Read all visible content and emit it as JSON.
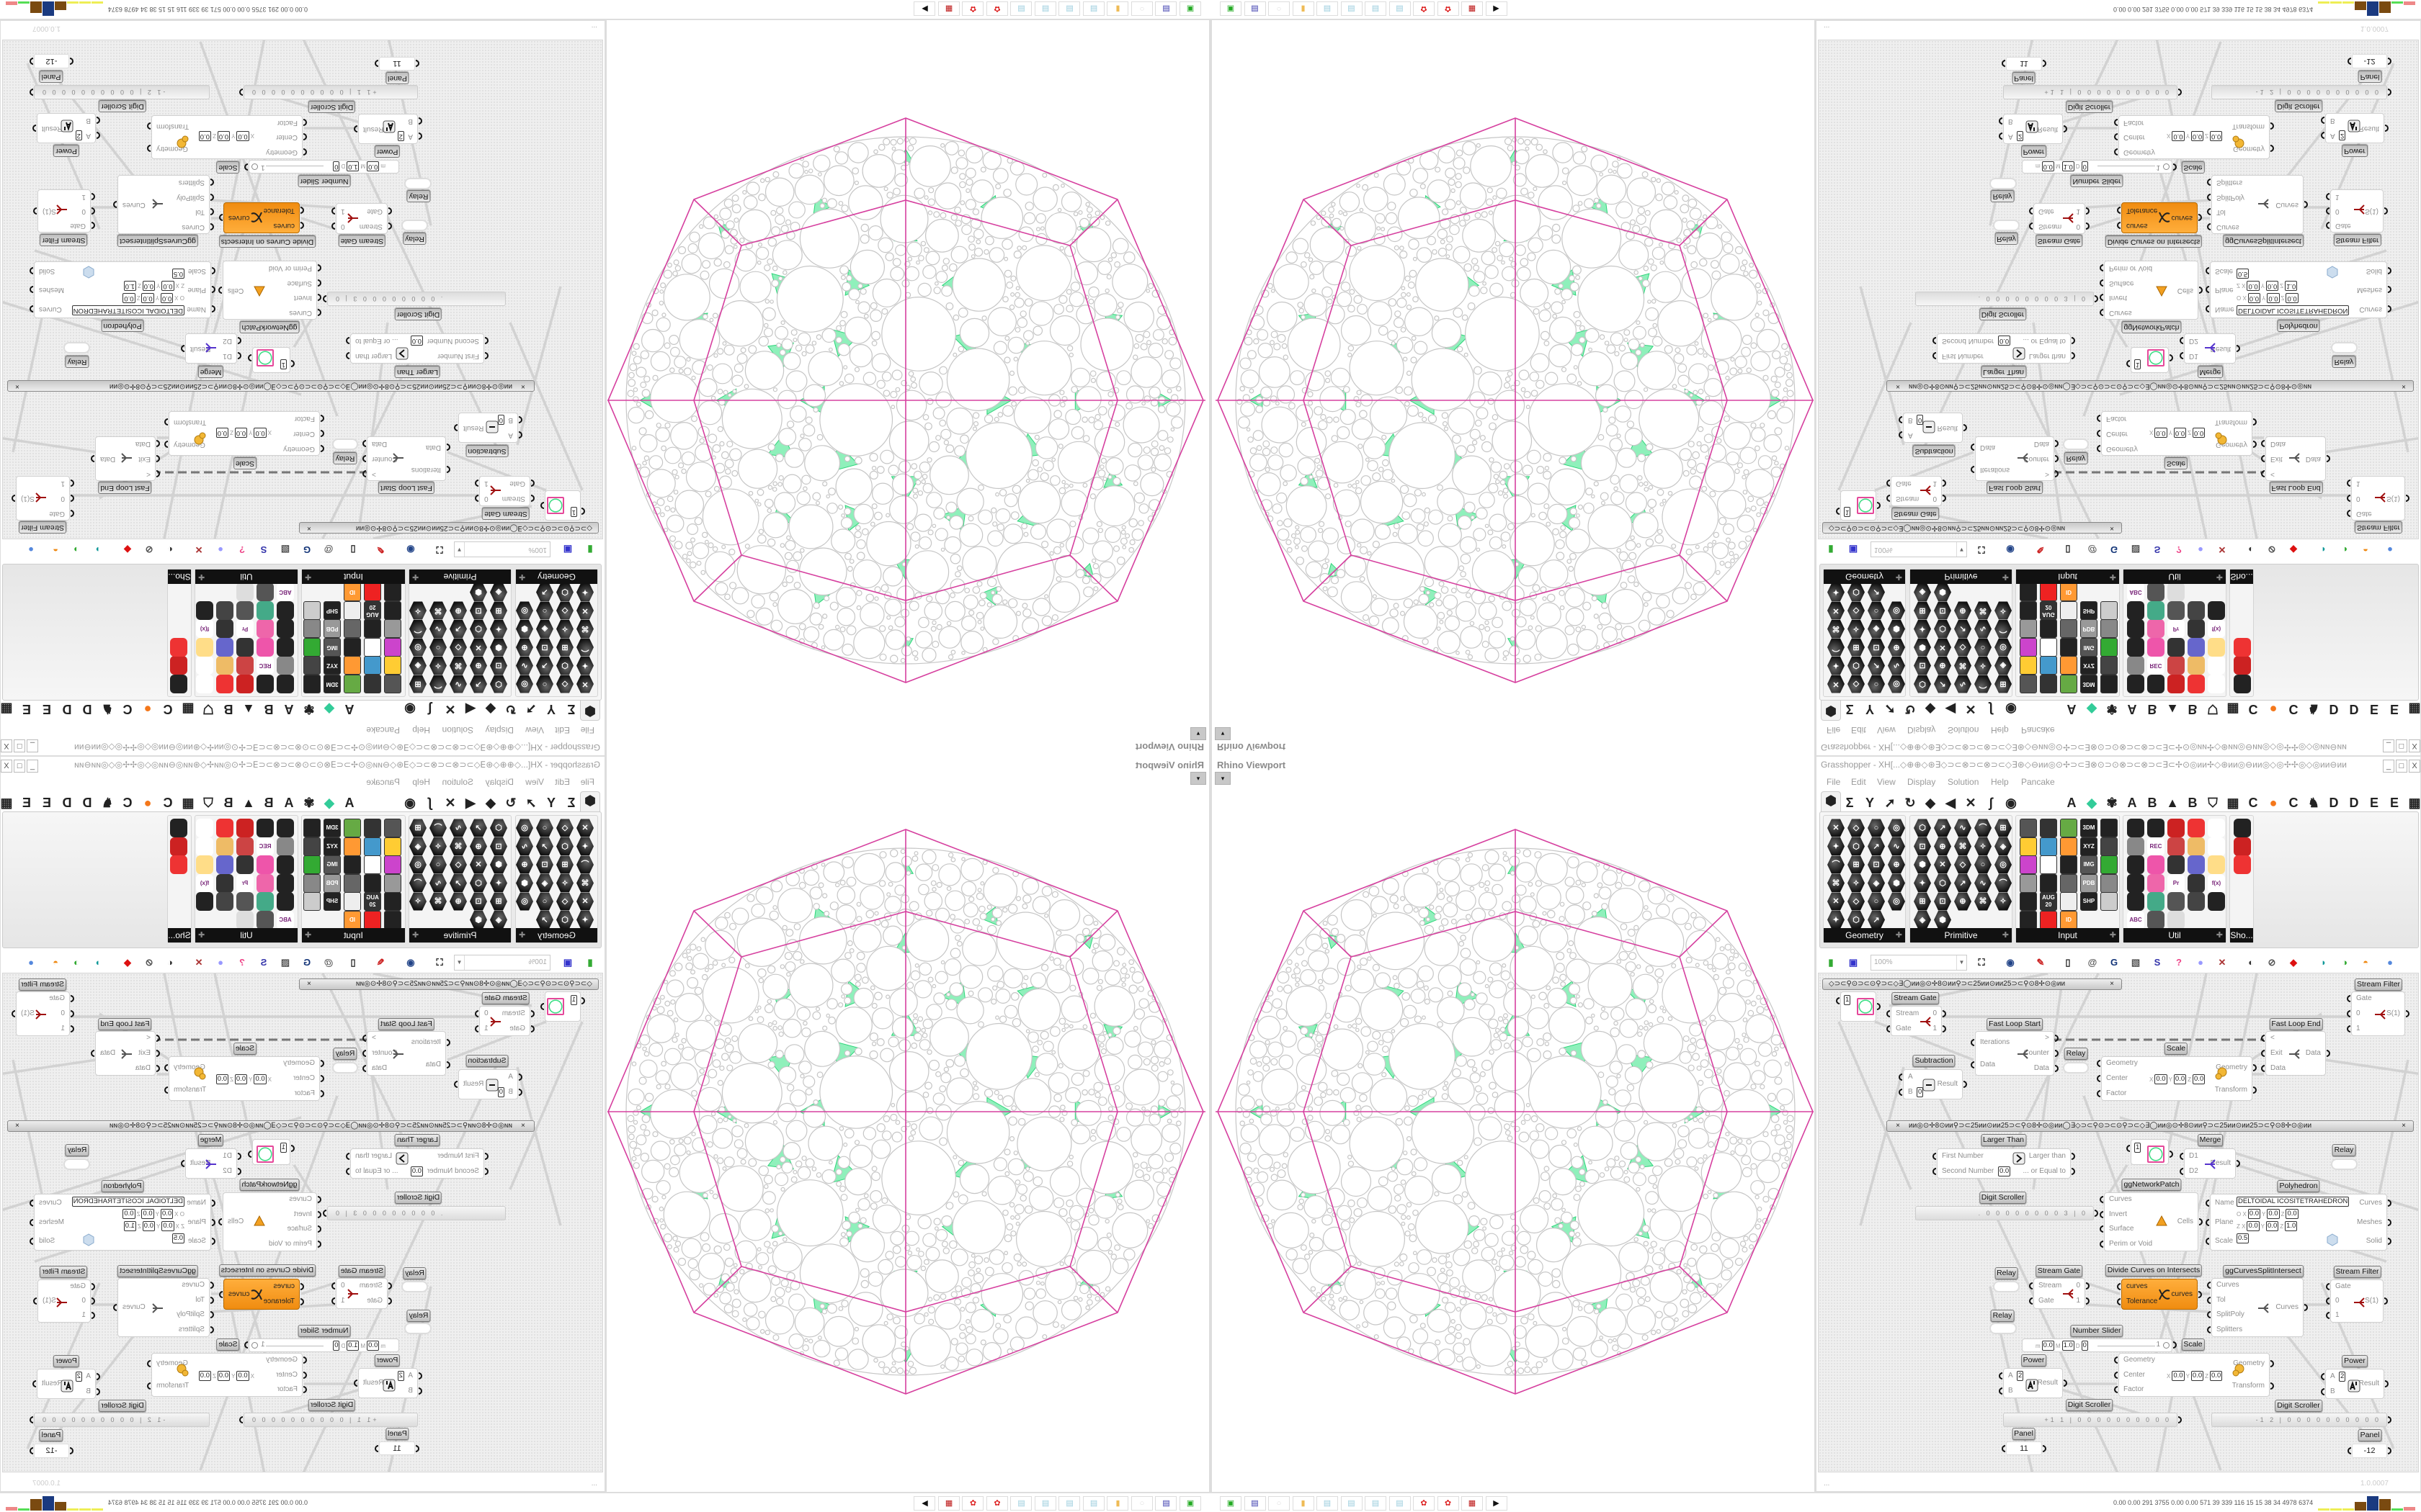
{
  "viewport": {
    "title": "Rhino Viewport",
    "dropdown": "▾"
  },
  "gh": {
    "title": "Grasshopper - XH[...◇⊕⊕◇⊛∃◇⊃⊂⊗⊃⊂⊗⊃⊂◇∃⊛◇⊖ᴎᴎ◎⊙✢⊃⊂∃⊗⊙⊃⊙⊗⊃⊂⊗⊃⊂∃⊂✢⊙◎ᴎᴎ✢◇⊛ᴎᴎ◎⊖ᴎᴎ◎◇◎✢✢◎◇◎ᴎᴎ⊖ᴎᴎ⊛◇ᴎᴎ◎⊙✢⊃⊂∃⊗⊙⊃⊙⊗⊃",
    "window_buttons": [
      "_",
      "□",
      "X"
    ],
    "menu": [
      "File",
      "Edit",
      "View",
      "Display",
      "Solution",
      "Help",
      "Pancake"
    ],
    "letter_tabs": [
      "A",
      "A",
      "B",
      "B",
      "C",
      "C",
      "D",
      "D",
      "E",
      "E"
    ],
    "panels": [
      "Geometry",
      "Primitive",
      "Input",
      "Util",
      "Sho..."
    ],
    "input_icon_labels": [
      "3DM",
      "XYZ",
      "IMG",
      "PDB",
      "SHP",
      "AUG 20",
      "ID"
    ],
    "util_icon_labels": [
      "REC",
      "f(x)",
      "Pr",
      "ABC"
    ],
    "zoom": "100%",
    "group_text": "◇⊃⊂⚲⊙⊃⊂⊙⚲⊃⊂◇∃◯ᴎᴎ◎⊙✢8⊙ᴎᴎ⚲⊃⊂25ᴎᴎ⊙ᴎᴎ25⊃⊂⚲⊙8✢⊙◎ᴎᴎ",
    "group_text_2": "ᴎᴎ◎⊙✢8⊙ᴎᴎ⚲⊃⊂25ᴎᴎ⊙ᴎᴎ25⊃⊂⚲⊙8✢⊙◎ᴎᴎ◯∃◇⊃⊂⚲⊙⊃⊂⊙⚲⊃⊂◇∃◯ᴎᴎ◎⊙✢8⊙ᴎᴎ⚲⊃⊂25ᴎᴎ⊙ᴎᴎ25⊃⊂⚲⊙8✢⊙◎ᴎᴎ",
    "group_close": "×",
    "components": [
      {
        "kind": "comp",
        "label": "Stream Filter",
        "inputs": [
          "Gate",
          "0",
          "1"
        ],
        "outputs": [
          "S(1)"
        ],
        "icon": "stream-filter-icon"
      },
      {
        "kind": "swatch",
        "value": "1"
      },
      {
        "kind": "comp",
        "label": "Stream Gate",
        "inputs": [
          "Stream",
          "Gate"
        ],
        "outputs": [
          "0",
          "1"
        ],
        "icon": "stream-gate-icon"
      },
      {
        "kind": "comp",
        "label": "Fast Loop Start",
        "inputs": [
          "Iterations",
          "Data"
        ],
        "outputs": [
          ">",
          "Counter",
          "Data"
        ],
        "icon": "loop-start-icon"
      },
      {
        "kind": "comp",
        "label": "Fast Loop End",
        "inputs": [
          "<",
          "Exit",
          "Data"
        ],
        "outputs": [
          "Data"
        ],
        "icon": "loop-end-icon"
      },
      {
        "kind": "relay",
        "label": "Relay"
      },
      {
        "kind": "comp",
        "label": "Scale",
        "inputs": [
          "Geometry",
          "Center",
          "Factor"
        ],
        "outputs": [
          "Geometry",
          "Transform"
        ],
        "field_rows": [
          [
            [
              "X",
              "0.0"
            ],
            [
              "Y",
              "0.0"
            ],
            [
              "Z",
              "0.0"
            ]
          ]
        ],
        "icon": "scale-icon"
      },
      {
        "kind": "comp",
        "label": "Subtraction",
        "inputs": [
          "A",
          "B"
        ],
        "outputs": [
          "Result"
        ],
        "field_rows": [
          [
            [
              "",
              "0"
            ]
          ]
        ],
        "icon": "minus-icon"
      },
      {
        "kind": "comp",
        "label": "Larger Than",
        "inputs": [
          "First Number",
          "Second Number"
        ],
        "outputs": [
          "Larger than",
          "... or Equal to"
        ],
        "field_rows": [
          [
            [
              "",
              "0.0"
            ]
          ]
        ],
        "icon": "greater-than-icon"
      },
      {
        "kind": "swatch",
        "value": "1"
      },
      {
        "kind": "comp",
        "label": "Merge",
        "inputs": [
          "D1",
          "D2"
        ],
        "outputs": [
          "Result"
        ],
        "icon": "merge-icon"
      },
      {
        "kind": "relay",
        "label": "Relay"
      },
      {
        "kind": "comp",
        "label": "ggNetworkPatch",
        "inputs": [
          "Curves",
          "Invert",
          "Surface",
          "Perim or Void"
        ],
        "outputs": [
          "Cells"
        ],
        "icon": "network-patch-icon"
      },
      {
        "kind": "comp",
        "label": "Polyhedron",
        "inputs": [
          "Name",
          "Plane",
          "Scale"
        ],
        "outputs": [
          "Curves",
          "Meshes",
          "Solid"
        ],
        "field_rows": [
          [
            [
              "",
              "DELTOIDAL ICOSITETRAHEDRON"
            ]
          ],
          [
            [
              "O X",
              "0.0"
            ],
            [
              "Y",
              "0.0"
            ],
            [
              "Z",
              "0.0"
            ]
          ],
          [
            [
              "Z X",
              "0.0"
            ],
            [
              "Y",
              "0.0"
            ],
            [
              "Z",
              "1.0"
            ]
          ],
          [
            [
              "",
              "0.5"
            ]
          ]
        ],
        "icon": "polyhedron-icon"
      },
      {
        "kind": "scroller",
        "label": "Digit Scroller",
        "digits": ". 0 0 0 0 0 0 0 0 3 | 0"
      },
      {
        "kind": "relay",
        "label": "Relay"
      },
      {
        "kind": "comp",
        "label": "Stream Gate",
        "inputs": [
          "Stream",
          "Gate"
        ],
        "outputs": [
          "0",
          "1"
        ],
        "icon": "stream-gate-icon"
      },
      {
        "kind": "comp",
        "label": "Divide Curves on Intersects",
        "inputs": [
          "curves",
          "Tolerance"
        ],
        "outputs": [
          "curves"
        ],
        "icon": "divide-curves-icon",
        "orange": true
      },
      {
        "kind": "comp",
        "label": "ggCurvesSplitIntersect",
        "inputs": [
          "Curves",
          "Tol",
          "SplitPoly",
          "Splitters"
        ],
        "outputs": [
          "Curves"
        ],
        "icon": "split-intersect-icon"
      },
      {
        "kind": "comp",
        "label": "Stream Filter",
        "inputs": [
          "Gate",
          "0",
          "1"
        ],
        "outputs": [
          "S(1)"
        ],
        "icon": "stream-filter-icon"
      },
      {
        "kind": "relay",
        "label": "Relay"
      },
      {
        "kind": "slider",
        "label": "Number Slider",
        "field_rows": [
          [
            [
              "m",
              "0.0"
            ],
            [
              "M",
              "1.0"
            ],
            [
              "D",
              "0"
            ]
          ]
        ],
        "value": "1"
      },
      {
        "kind": "comp",
        "label": "Scale",
        "inputs": [
          "Geometry",
          "Center",
          "Factor"
        ],
        "outputs": [
          "Geometry",
          "Transform"
        ],
        "field_rows": [
          [
            [
              "X",
              "0.0"
            ],
            [
              "Y",
              "0.0"
            ],
            [
              "Z",
              "0.0"
            ]
          ]
        ],
        "icon": "scale-icon"
      },
      {
        "kind": "comp",
        "label": "Power",
        "inputs": [
          "A",
          "B"
        ],
        "outputs": [
          "Result"
        ],
        "field_rows": [
          [
            [
              "",
              "2"
            ]
          ]
        ],
        "icon": "power-icon"
      },
      {
        "kind": "comp",
        "label": "Power",
        "inputs": [
          "A",
          "B"
        ],
        "outputs": [
          "Result"
        ],
        "field_rows": [
          [
            [
              "",
              "2"
            ]
          ]
        ],
        "icon": "power-icon"
      },
      {
        "kind": "scroller",
        "label": "Digit Scroller",
        "digits": "+1 1 | 0 0 0 0 0 0 0 0 0 0"
      },
      {
        "kind": "scroller",
        "label": "Digit Scroller",
        "digits": "-1 2 | 0 0 0 0 0 0 0 0 0 0"
      },
      {
        "kind": "panel",
        "label": "Panel",
        "value": "11"
      },
      {
        "kind": "panel",
        "label": "Panel",
        "value": "-12"
      }
    ],
    "status": "...",
    "version": "1.0.0007"
  },
  "taskbar": {
    "meters": "0.00 0.00 291 3755 0.00 0.00 571 39 339 116 15 15 38 34 4978 6374"
  },
  "colors": {
    "accent_orange": "#f4921a",
    "polyhedron_lines": "#d6409f",
    "packing_circles": "#c6c6c6",
    "packing_gaps": "#3ddc84",
    "ribbon_label_bg": "#111111"
  }
}
